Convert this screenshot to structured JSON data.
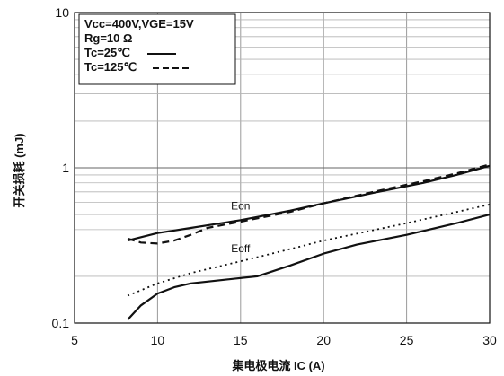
{
  "chart_data": {
    "type": "line",
    "xlabel": "集电极电流 IC (A)",
    "ylabel": "开关损耗 (mJ)",
    "xlim": [
      5,
      30
    ],
    "ylim": [
      0.1,
      10
    ],
    "yscale": "log",
    "x_ticks": [
      "5",
      "10",
      "15",
      "20",
      "25",
      "30"
    ],
    "y_ticks": [
      "0.1",
      "1",
      "10"
    ],
    "grid": true,
    "legend_position": "top-left",
    "legend_lines": {
      "conditions": "Vcc=400V,VGE=15V",
      "rg": "Rg=10 Ω",
      "tc25": "Tc=25℃",
      "tc125": "Tc=125℃"
    },
    "series": [
      {
        "style": "solid",
        "annotation": "Eon",
        "points": [
          [
            8.2,
            0.34
          ],
          [
            10,
            0.38
          ],
          [
            12,
            0.41
          ],
          [
            15,
            0.46
          ],
          [
            18,
            0.53
          ],
          [
            20,
            0.59
          ],
          [
            23,
            0.69
          ],
          [
            26,
            0.8
          ],
          [
            28,
            0.9
          ],
          [
            30,
            1.03
          ]
        ]
      },
      {
        "style": "dashed",
        "annotation": "",
        "points": [
          [
            8.2,
            0.35
          ],
          [
            9,
            0.33
          ],
          [
            10,
            0.325
          ],
          [
            11,
            0.34
          ],
          [
            12,
            0.37
          ],
          [
            13,
            0.41
          ],
          [
            15,
            0.45
          ],
          [
            18,
            0.52
          ],
          [
            20,
            0.59
          ],
          [
            23,
            0.7
          ],
          [
            26,
            0.82
          ],
          [
            28,
            0.92
          ],
          [
            30,
            1.05
          ]
        ]
      },
      {
        "style": "solid",
        "annotation": "",
        "points": [
          [
            8.2,
            0.105
          ],
          [
            9,
            0.13
          ],
          [
            10,
            0.155
          ],
          [
            11,
            0.17
          ],
          [
            12,
            0.18
          ],
          [
            14,
            0.19
          ],
          [
            16,
            0.2
          ],
          [
            18,
            0.235
          ],
          [
            20,
            0.28
          ],
          [
            22,
            0.32
          ],
          [
            25,
            0.37
          ],
          [
            28,
            0.44
          ],
          [
            30,
            0.5
          ]
        ]
      },
      {
        "style": "dotted",
        "annotation": "Eoff",
        "points": [
          [
            8.2,
            0.15
          ],
          [
            10,
            0.18
          ],
          [
            12,
            0.21
          ],
          [
            15,
            0.25
          ],
          [
            18,
            0.3
          ],
          [
            20,
            0.34
          ],
          [
            25,
            0.44
          ],
          [
            30,
            0.58
          ]
        ]
      }
    ]
  }
}
